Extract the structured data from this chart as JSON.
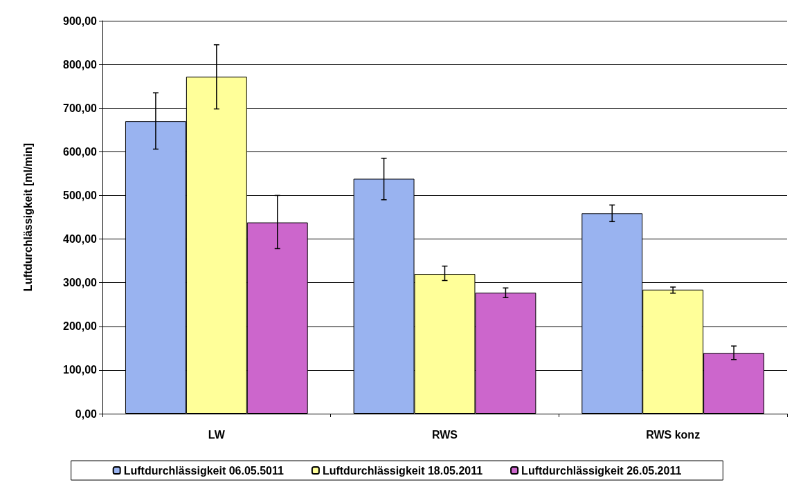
{
  "chart_data": {
    "type": "bar",
    "ylabel": "Luftdurchlässigkeit [ml/min]",
    "categories": [
      "LW",
      "RWS",
      "RWS konz"
    ],
    "series": [
      {
        "name": "Luftdurchlässigkeit 06.05.5011",
        "color": "#99b3f0",
        "values": [
          670,
          538,
          459
        ],
        "errors": [
          [
            606,
            735
          ],
          [
            490,
            585
          ],
          [
            440,
            478
          ]
        ]
      },
      {
        "name": "Luftdurchlässigkeit 18.05.2011",
        "color": "#ffff99",
        "values": [
          772,
          320,
          284
        ],
        "errors": [
          [
            698,
            845
          ],
          [
            305,
            338
          ],
          [
            276,
            290
          ]
        ]
      },
      {
        "name": "Luftdurchlässigkeit 26.05.2011",
        "color": "#cc66cc",
        "values": [
          438,
          277,
          139
        ],
        "errors": [
          [
            378,
            500
          ],
          [
            266,
            288
          ],
          [
            124,
            155
          ]
        ]
      }
    ],
    "ylim": [
      0,
      900
    ],
    "yticks": [
      {
        "value": 0,
        "label": "0,00"
      },
      {
        "value": 100,
        "label": "100,00"
      },
      {
        "value": 200,
        "label": "200,00"
      },
      {
        "value": 300,
        "label": "300,00"
      },
      {
        "value": 400,
        "label": "400,00"
      },
      {
        "value": 500,
        "label": "500,00"
      },
      {
        "value": 600,
        "label": "600,00"
      },
      {
        "value": 700,
        "label": "700,00"
      },
      {
        "value": 800,
        "label": "800,00"
      },
      {
        "value": 900,
        "label": "900,00"
      }
    ],
    "grid": "y",
    "legend": "bottom"
  }
}
